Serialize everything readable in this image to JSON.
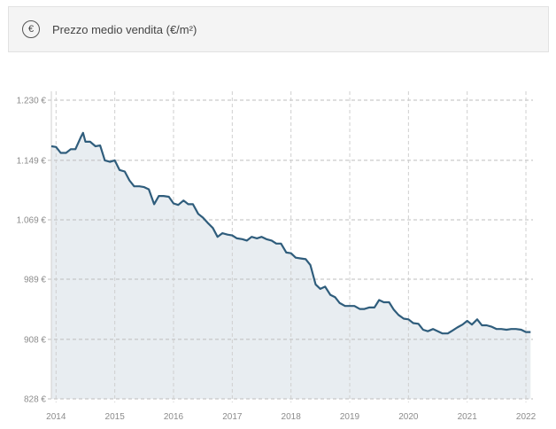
{
  "header": {
    "icon": "euro-circle-icon",
    "icon_glyph": "€",
    "title": "Prezzo medio vendita (€/m²)"
  },
  "chart_data": {
    "type": "area",
    "title": "Prezzo medio vendita (€/m²)",
    "xlabel": "",
    "ylabel": "",
    "y_ticks": [
      {
        "value": 828,
        "label": "828 €"
      },
      {
        "value": 908,
        "label": "908 €"
      },
      {
        "value": 989,
        "label": "989 €"
      },
      {
        "value": 1069,
        "label": "1.069 €"
      },
      {
        "value": 1149,
        "label": "1.149 €"
      },
      {
        "value": 1230,
        "label": "1.230 €"
      }
    ],
    "x_ticks": [
      {
        "value": 2014,
        "label": "2014"
      },
      {
        "value": 2015,
        "label": "2015"
      },
      {
        "value": 2016,
        "label": "2016"
      },
      {
        "value": 2017,
        "label": "2017"
      },
      {
        "value": 2018,
        "label": "2018"
      },
      {
        "value": 2019,
        "label": "2019"
      },
      {
        "value": 2020,
        "label": "2020"
      },
      {
        "value": 2021,
        "label": "2021"
      },
      {
        "value": 2022,
        "label": "2022"
      }
    ],
    "xlim": [
      2013.92,
      2022.12
    ],
    "ylim": [
      828,
      1230
    ],
    "grid": true,
    "line_color": "#2f5d7c",
    "fill_color": "#e8edf1",
    "x": [
      2013.92,
      2014.0,
      2014.08,
      2014.17,
      2014.25,
      2014.33,
      2014.42,
      2014.46,
      2014.5,
      2014.58,
      2014.67,
      2014.75,
      2014.83,
      2014.92,
      2015.0,
      2015.08,
      2015.17,
      2015.25,
      2015.33,
      2015.42,
      2015.5,
      2015.58,
      2015.67,
      2015.75,
      2015.83,
      2015.92,
      2016.0,
      2016.08,
      2016.17,
      2016.25,
      2016.33,
      2016.42,
      2016.5,
      2016.58,
      2016.67,
      2016.75,
      2016.83,
      2016.92,
      2017.0,
      2017.08,
      2017.17,
      2017.25,
      2017.33,
      2017.42,
      2017.5,
      2017.58,
      2017.67,
      2017.75,
      2017.83,
      2017.92,
      2018.0,
      2018.08,
      2018.17,
      2018.25,
      2018.33,
      2018.42,
      2018.5,
      2018.58,
      2018.67,
      2018.75,
      2018.83,
      2018.92,
      2019.0,
      2019.08,
      2019.17,
      2019.25,
      2019.33,
      2019.42,
      2019.5,
      2019.58,
      2019.67,
      2019.75,
      2019.83,
      2019.92,
      2020.0,
      2020.08,
      2020.17,
      2020.25,
      2020.33,
      2020.42,
      2020.5,
      2020.58,
      2020.67,
      2020.75,
      2020.83,
      2020.92,
      2021.0,
      2021.08,
      2021.17,
      2021.25,
      2021.33,
      2021.42,
      2021.5,
      2021.58,
      2021.67,
      2021.75,
      2021.83,
      2021.92,
      2022.0,
      2022.08
    ],
    "y": [
      1168,
      1167,
      1159,
      1159,
      1164,
      1164,
      1180,
      1186,
      1174,
      1174,
      1168,
      1169,
      1149,
      1147,
      1149,
      1136,
      1134,
      1122,
      1114,
      1114,
      1113,
      1110,
      1090,
      1101,
      1101,
      1100,
      1091,
      1089,
      1095,
      1090,
      1090,
      1077,
      1072,
      1065,
      1058,
      1046,
      1051,
      1049,
      1048,
      1044,
      1043,
      1041,
      1046,
      1044,
      1046,
      1043,
      1041,
      1037,
      1037,
      1025,
      1024,
      1018,
      1017,
      1016,
      1008,
      982,
      976,
      979,
      968,
      965,
      957,
      953,
      953,
      953,
      949,
      949,
      951,
      951,
      961,
      958,
      958,
      948,
      941,
      936,
      935,
      930,
      929,
      921,
      919,
      922,
      919,
      916,
      916,
      920,
      924,
      928,
      933,
      928,
      935,
      927,
      927,
      925,
      922,
      922,
      921,
      922,
      922,
      921,
      918,
      918
    ]
  }
}
